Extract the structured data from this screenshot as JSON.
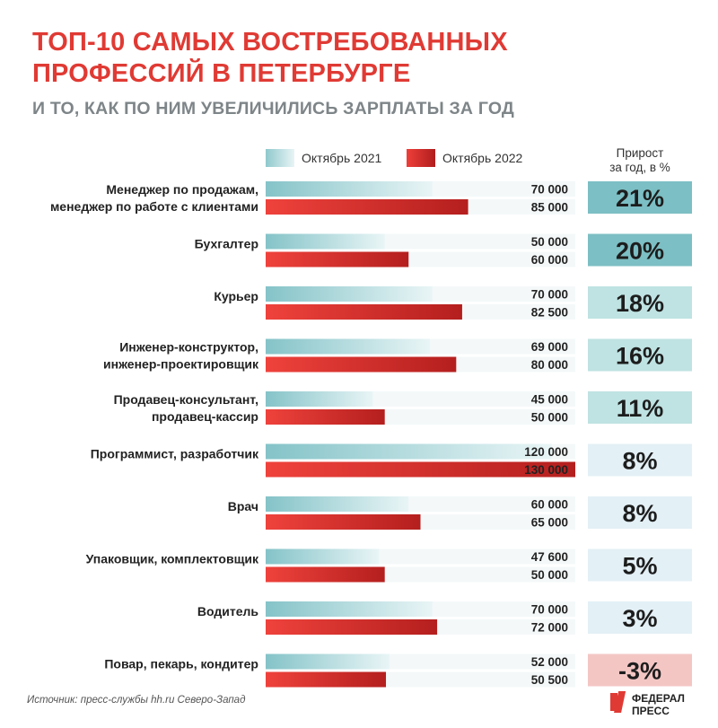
{
  "header": {
    "title_line1": "ТОП-10 САМЫХ ВОСТРЕБОВАННЫХ",
    "title_line2": "ПРОФЕССИЙ В ПЕТЕРБУРГЕ",
    "subtitle": "И ТО, КАК ПО НИМ УВЕЛИЧИЛИСЬ ЗАРПЛАТЫ ЗА ГОД"
  },
  "growth_header": {
    "line1": "Прирост",
    "line2": "за год, в %"
  },
  "footer": {
    "source": "Источник: пресс-службы hh.ru Северо-Запад",
    "logo_line1": "ФЕДЕРАЛ",
    "logo_line2": "ПРЕСС"
  },
  "colors": {
    "title": "#e03a34",
    "series_2021": "#8fc9cd",
    "series_2022": "#d92a27",
    "growth_high": "#7cbfc4",
    "growth_mid": "#bfe2e2",
    "growth_low": "#e3f0f6",
    "growth_negative": "#f3c6c4"
  },
  "chart_data": {
    "type": "bar",
    "orientation": "horizontal",
    "categories": [
      [
        "Менеджер по продажам,",
        "менеджер по работе с клиентами"
      ],
      [
        "Бухгалтер"
      ],
      [
        "Курьер"
      ],
      [
        "Инженер-конструктор,",
        "инженер-проектировщик"
      ],
      [
        "Продавец-консультант,",
        "продавец-кассир"
      ],
      [
        "Программист, разработчик"
      ],
      [
        "Врач"
      ],
      [
        "Упаковщик, комплектовщик"
      ],
      [
        "Водитель"
      ],
      [
        "Повар, пекарь, кондитер"
      ]
    ],
    "series": [
      {
        "name": "Октябрь 2021",
        "values": [
          70000,
          50000,
          70000,
          69000,
          45000,
          120000,
          60000,
          47600,
          70000,
          52000
        ],
        "labels": [
          "70 000",
          "50 000",
          "70 000",
          "69 000",
          "45 000",
          "120 000",
          "60 000",
          "47 600",
          "70 000",
          "52 000"
        ]
      },
      {
        "name": "Октябрь 2022",
        "values": [
          85000,
          60000,
          82500,
          80000,
          50000,
          130000,
          65000,
          50000,
          72000,
          50500
        ],
        "labels": [
          "85 000",
          "60 000",
          "82 500",
          "80 000",
          "50 000",
          "130 000",
          "65 000",
          "50 000",
          "72 000",
          "50 500"
        ]
      }
    ],
    "growth": {
      "name": "Прирост за год, в %",
      "values": [
        21,
        20,
        18,
        16,
        11,
        8,
        8,
        5,
        3,
        -3
      ],
      "labels": [
        "21%",
        "20%",
        "18%",
        "16%",
        "11%",
        "8%",
        "8%",
        "5%",
        "3%",
        "-3%"
      ],
      "tiers": [
        "high",
        "high",
        "mid",
        "mid",
        "mid",
        "low",
        "low",
        "low",
        "low",
        "negative"
      ]
    },
    "legend_position": "top",
    "grid": false
  }
}
